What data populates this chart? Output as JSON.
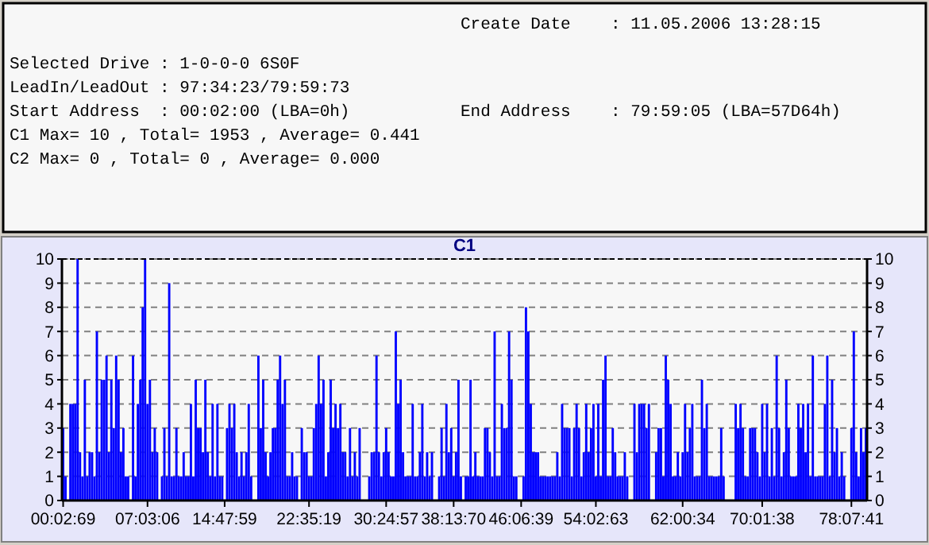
{
  "chart_data": {
    "type": "bar",
    "title": "C1",
    "annotations": [
      "Create Date    : 11.05.2006 13:28:15",
      "Selected Drive : 1-0-0-0 6S0F",
      "LeadIn/LeadOut : 97:34:23/79:59:73",
      "Start Address  : 00:02:00 (LBA=0h)",
      "End Address    : 79:59:05 (LBA=57D64h)",
      "C1 Max= 10 , Total= 1953 , Average= 0.441",
      "C2 Max= 0 , Total= 0 , Average= 0.000"
    ],
    "categories": [
      "00:02:69",
      null,
      null,
      null,
      null,
      null,
      null,
      null,
      null,
      null,
      null,
      null,
      null,
      null,
      null,
      null,
      null,
      null,
      null,
      null,
      null,
      null,
      null,
      null,
      null,
      null,
      null,
      null,
      null,
      null,
      null,
      null,
      null,
      null,
      null,
      "07:03:06",
      null,
      null,
      null,
      null,
      null,
      null,
      null,
      null,
      null,
      null,
      null,
      null,
      null,
      null,
      null,
      null,
      null,
      null,
      null,
      null,
      null,
      null,
      null,
      null,
      null,
      null,
      null,
      null,
      null,
      null,
      null,
      "14:47:59",
      null,
      null,
      null,
      null,
      null,
      null,
      null,
      null,
      null,
      null,
      null,
      null,
      null,
      null,
      null,
      null,
      null,
      null,
      null,
      null,
      null,
      null,
      null,
      null,
      null,
      null,
      null,
      null,
      null,
      null,
      null,
      null,
      null,
      null,
      "22:35:19",
      null,
      null,
      null,
      null,
      null,
      null,
      null,
      null,
      null,
      null,
      null,
      null,
      null,
      null,
      null,
      null,
      null,
      null,
      null,
      null,
      null,
      null,
      null,
      null,
      null,
      null,
      null,
      null,
      null,
      null,
      null,
      "30:24:57",
      null,
      null,
      null,
      null,
      null,
      null,
      null,
      null,
      null,
      null,
      null,
      null,
      null,
      null,
      null,
      null,
      null,
      null,
      null,
      null,
      null,
      null,
      null,
      null,
      null,
      null,
      null,
      "38:13:70",
      null,
      null,
      null,
      null,
      null,
      null,
      null,
      null,
      null,
      null,
      null,
      null,
      null,
      null,
      null,
      null,
      null,
      null,
      null,
      null,
      null,
      null,
      null,
      null,
      null,
      null,
      null,
      "46:06:39",
      null,
      null,
      null,
      null,
      null,
      null,
      null,
      null,
      null,
      null,
      null,
      null,
      null,
      null,
      null,
      null,
      null,
      null,
      null,
      null,
      null,
      null,
      null,
      null,
      null,
      null,
      null,
      null,
      null,
      null,
      "54:02:63",
      null,
      null,
      null,
      null,
      null,
      null,
      null,
      null,
      null,
      null,
      null,
      null,
      null,
      null,
      null,
      null,
      null,
      null,
      null,
      null,
      null,
      null,
      null,
      null,
      null,
      null,
      null,
      null,
      null,
      null,
      null,
      null,
      null,
      null,
      null,
      "62:00:34",
      null,
      null,
      null,
      null,
      null,
      null,
      null,
      null,
      null,
      null,
      null,
      null,
      null,
      null,
      null,
      null,
      null,
      null,
      null,
      null,
      null,
      null,
      null,
      null,
      null,
      null,
      null,
      null,
      null,
      null,
      null,
      null,
      "70:01:38",
      null,
      null,
      null,
      null,
      null,
      null,
      null,
      null,
      null,
      null,
      null,
      null,
      null,
      null,
      null,
      null,
      null,
      null,
      null,
      null,
      null,
      null,
      null,
      null,
      null,
      null,
      null,
      null,
      null,
      null,
      null,
      null,
      null,
      null,
      null,
      null,
      "78:07:41",
      null,
      null,
      null,
      null,
      null,
      null
    ],
    "values": [
      3,
      1,
      0,
      4,
      4,
      4,
      10,
      2,
      1,
      5,
      1,
      2,
      2,
      1,
      7,
      2,
      5,
      5,
      6,
      2,
      5,
      3,
      6,
      5,
      2,
      3,
      1,
      1,
      0,
      6,
      1,
      4,
      5,
      8,
      10,
      4,
      5,
      2,
      3,
      2,
      0,
      1,
      3,
      1,
      9,
      1,
      1,
      3,
      1,
      1,
      2,
      1,
      1,
      4,
      1,
      5,
      3,
      3,
      2,
      5,
      2,
      1,
      4,
      1,
      4,
      1,
      1,
      0,
      3,
      4,
      3,
      4,
      2,
      1,
      2,
      1,
      2,
      4,
      1,
      0,
      0,
      6,
      3,
      5,
      2,
      1,
      2,
      3,
      3,
      5,
      6,
      4,
      5,
      1,
      1,
      2,
      1,
      1,
      0,
      3,
      2,
      2,
      1,
      1,
      3,
      4,
      6,
      4,
      5,
      1,
      2,
      5,
      3,
      4,
      3,
      4,
      2,
      2,
      1,
      3,
      1,
      2,
      1,
      3,
      0,
      0,
      0,
      1,
      2,
      2,
      6,
      2,
      1,
      2,
      3,
      2,
      1,
      1,
      7,
      4,
      5,
      2,
      1,
      1,
      1,
      4,
      1,
      1,
      2,
      4,
      1,
      2,
      1,
      2,
      0,
      0,
      1,
      3,
      1,
      4,
      2,
      3,
      1,
      2,
      5,
      1,
      0,
      1,
      1,
      5,
      1,
      2,
      1,
      1,
      1,
      3,
      3,
      2,
      1,
      7,
      1,
      1,
      4,
      3,
      3,
      7,
      5,
      1,
      1,
      0,
      0,
      1,
      8,
      7,
      4,
      2,
      2,
      2,
      1,
      1,
      1,
      1,
      1,
      1,
      1,
      2,
      1,
      4,
      3,
      3,
      3,
      1,
      3,
      4,
      3,
      1,
      2,
      4,
      2,
      3,
      4,
      1,
      4,
      1,
      5,
      6,
      1,
      1,
      3,
      2,
      1,
      1,
      1,
      2,
      1,
      0,
      0,
      4,
      2,
      4,
      4,
      4,
      3,
      4,
      0,
      0,
      2,
      3,
      3,
      1,
      6,
      5,
      4,
      1,
      1,
      2,
      1,
      2,
      4,
      2,
      3,
      4,
      1,
      1,
      1,
      5,
      3,
      4,
      1,
      1,
      1,
      1,
      1,
      3,
      1,
      0,
      0,
      0,
      0,
      4,
      3,
      4,
      3,
      1,
      1,
      3,
      3,
      3,
      2,
      1,
      4,
      2,
      4,
      1,
      3,
      1,
      6,
      3,
      1,
      2,
      5,
      3,
      1,
      1,
      1,
      4,
      3,
      4,
      2,
      4,
      1,
      6,
      1,
      1,
      1,
      1,
      4,
      6,
      1,
      5,
      2,
      3,
      1,
      2,
      1,
      0,
      0,
      3,
      7,
      2,
      1,
      3,
      2,
      3
    ],
    "color": "#0000ff",
    "ylim": [
      0,
      10
    ],
    "yticks": [
      0,
      1,
      2,
      3,
      4,
      5,
      6,
      7,
      8,
      9,
      10
    ],
    "y2lim": [
      0,
      10
    ],
    "y2ticks": [
      0,
      1,
      2,
      3,
      4,
      5,
      6,
      7,
      8,
      9,
      10
    ],
    "grid": "y"
  }
}
